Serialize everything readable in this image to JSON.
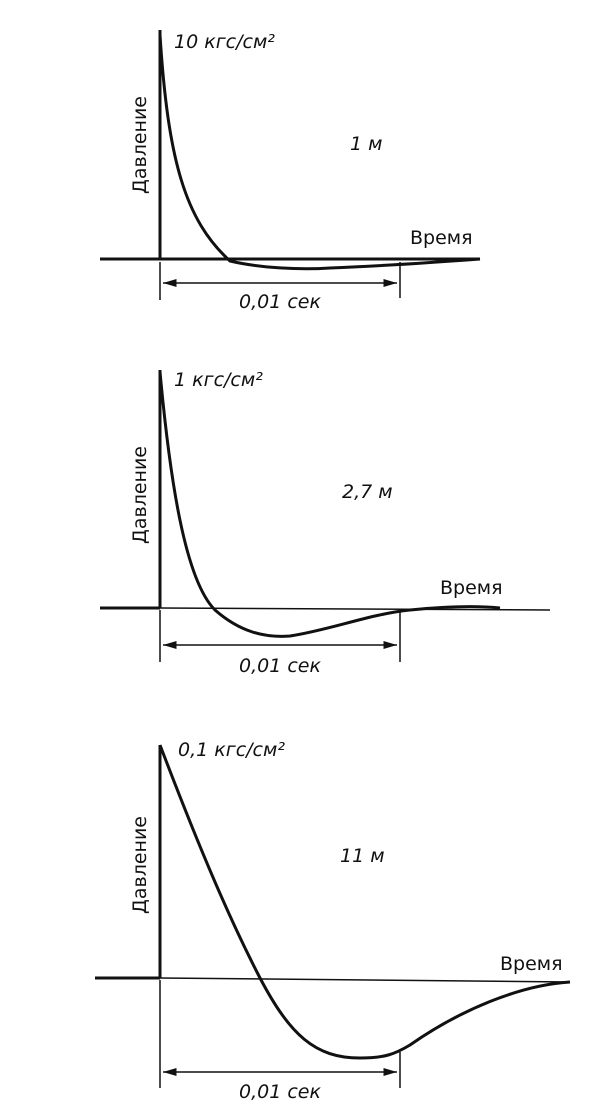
{
  "panels": [
    {
      "pressure_label": "10 кгс/см²",
      "distance": "1 м",
      "y_axis_label": "Давление",
      "x_axis_label": "Время",
      "interval_label": "0,01 сек"
    },
    {
      "pressure_label": "1 кгс/см²",
      "distance": "2,7 м",
      "y_axis_label": "Давление",
      "x_axis_label": "Время",
      "interval_label": "0,01 сек"
    },
    {
      "pressure_label": "0,1 кгс/см²",
      "distance": "11 м",
      "y_axis_label": "Давление",
      "x_axis_label": "Время",
      "interval_label": "0,01 сек"
    }
  ]
}
